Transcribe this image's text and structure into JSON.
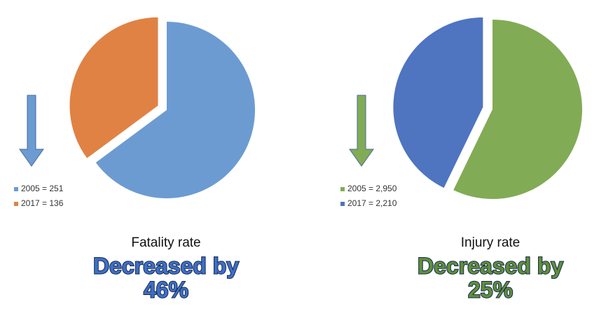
{
  "chart_data": [
    {
      "type": "pie",
      "title": "Fatality rate",
      "annotation": [
        "Decreased by",
        "46%"
      ],
      "categories": [
        "2005 = 251",
        "2017 = 136"
      ],
      "values": [
        251,
        136
      ],
      "colors": [
        "#6c9bd2",
        "#e08244"
      ],
      "headline_color": "#3f6fc4"
    },
    {
      "type": "pie",
      "title": "Injury rate",
      "annotation": [
        "Decreased by",
        "25%"
      ],
      "categories": [
        "2005 = 2,950",
        "2017 = 2,210"
      ],
      "values": [
        2950,
        2210
      ],
      "colors": [
        "#82ab55",
        "#4f74c0"
      ],
      "headline_color": "#5f8f3a"
    }
  ]
}
